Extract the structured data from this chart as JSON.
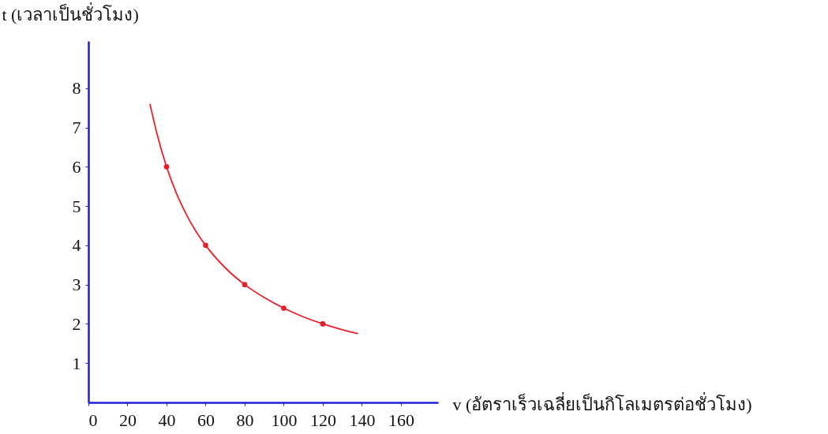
{
  "chart_data": {
    "type": "line",
    "xlabel": "v (อัตราเร็วเฉลี่ยเป็นกิโลเมตรต่อชั่วโมง)",
    "ylabel": "t (เวลาเป็นชั่วโมง)",
    "xlim": [
      0,
      179
    ],
    "ylim": [
      0,
      9.2
    ],
    "xticks": [
      0,
      20,
      40,
      60,
      80,
      100,
      120,
      140,
      160
    ],
    "yticks": [
      1,
      2,
      3,
      4,
      5,
      6,
      7,
      8
    ],
    "grid": false,
    "series": [
      {
        "color": "#e8202a",
        "x": [
          31.5,
          35,
          40,
          45,
          50,
          55,
          60,
          70,
          80,
          90,
          100,
          110,
          120,
          130,
          138
        ],
        "values": [
          7.6,
          6.86,
          6,
          5.33,
          4.8,
          4.36,
          4,
          3.43,
          3,
          2.67,
          2.4,
          2.18,
          2,
          1.85,
          1.75
        ]
      },
      {
        "type": "scatter",
        "color": "#e8202a",
        "x": [
          40,
          60,
          80,
          100,
          120
        ],
        "values": [
          6,
          4,
          3,
          2.4,
          2
        ]
      }
    ]
  }
}
